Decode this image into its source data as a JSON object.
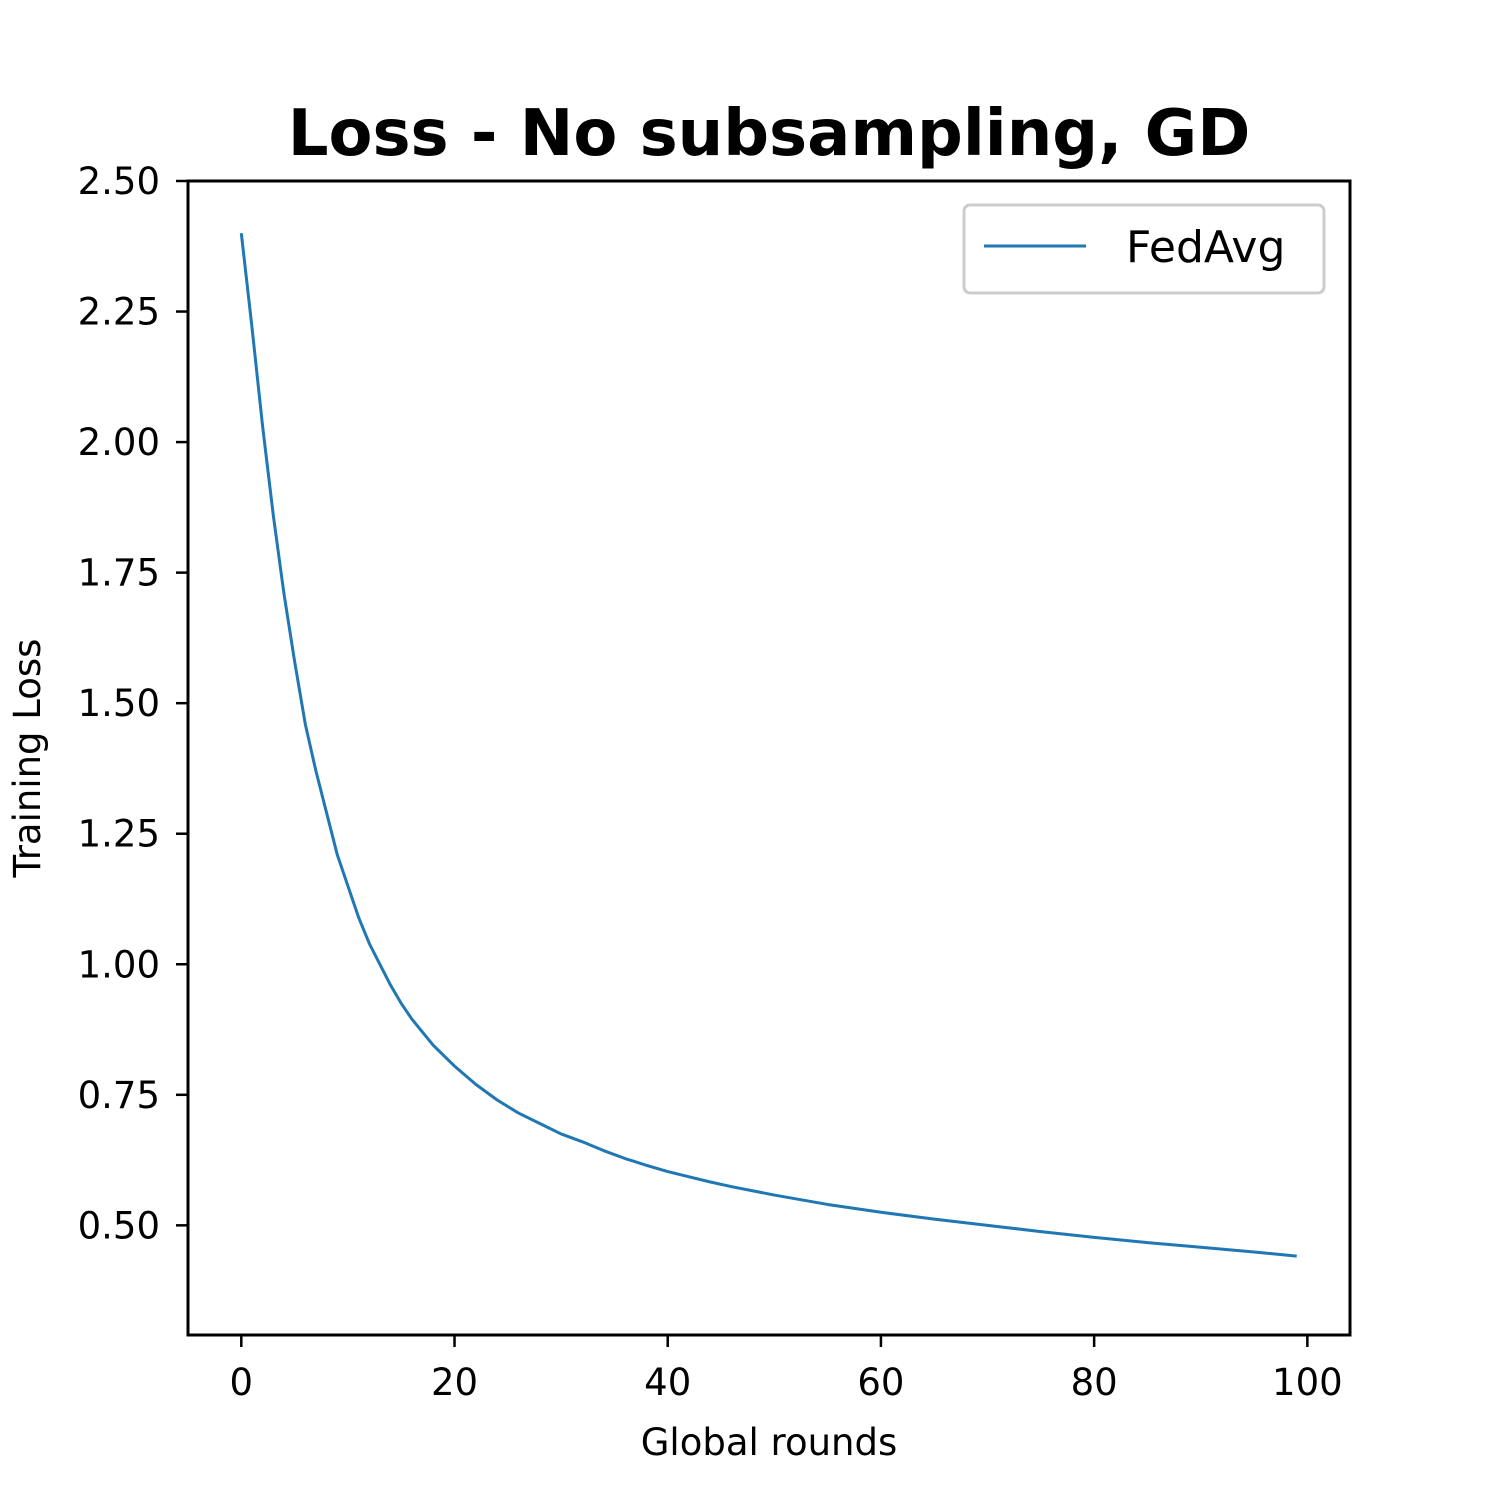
{
  "chart_data": {
    "type": "line",
    "title": "Loss - No subsampling, GD",
    "xlabel": "Global rounds",
    "ylabel": "Training Loss",
    "xlim": [
      -5,
      104
    ],
    "ylim": [
      0.29,
      2.5
    ],
    "xticks": [
      0,
      20,
      40,
      60,
      80,
      100
    ],
    "xtick_labels": [
      "0",
      "20",
      "40",
      "60",
      "80",
      "100"
    ],
    "yticks": [
      0.5,
      0.75,
      1.0,
      1.25,
      1.5,
      1.75,
      2.0,
      2.25,
      2.5
    ],
    "ytick_labels": [
      "0.50",
      "0.75",
      "1.00",
      "1.25",
      "1.50",
      "1.75",
      "2.00",
      "2.25",
      "2.50"
    ],
    "grid": false,
    "legend_position": "top-right",
    "series": [
      {
        "name": "FedAvg",
        "color": "#1f77b4",
        "x": [
          0,
          1,
          2,
          3,
          4,
          5,
          6,
          7,
          8,
          9,
          10,
          11,
          12,
          13,
          14,
          15,
          16,
          17,
          18,
          19,
          20,
          22,
          24,
          26,
          28,
          30,
          32,
          34,
          36,
          38,
          40,
          42,
          44,
          46,
          48,
          50,
          55,
          60,
          65,
          70,
          75,
          80,
          85,
          90,
          95,
          99
        ],
        "y": [
          2.4,
          2.22,
          2.03,
          1.86,
          1.71,
          1.58,
          1.46,
          1.37,
          1.29,
          1.21,
          1.15,
          1.09,
          1.04,
          1.0,
          0.96,
          0.925,
          0.895,
          0.87,
          0.845,
          0.825,
          0.805,
          0.77,
          0.74,
          0.715,
          0.695,
          0.675,
          0.66,
          0.643,
          0.628,
          0.615,
          0.603,
          0.593,
          0.583,
          0.574,
          0.566,
          0.558,
          0.54,
          0.525,
          0.512,
          0.5,
          0.488,
          0.477,
          0.467,
          0.458,
          0.449,
          0.441
        ]
      }
    ]
  }
}
